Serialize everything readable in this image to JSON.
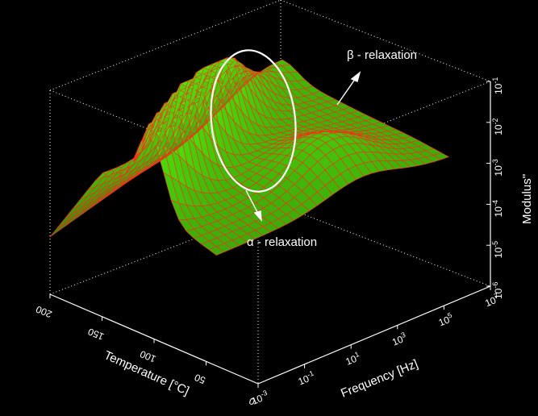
{
  "chart_data": {
    "type": "surface3d",
    "title": "",
    "xlabel": "Frequency [Hz]",
    "ylabel": "Temperature [°C]",
    "zlabel": "Modulus''",
    "x_scale": "log",
    "z_scale": "log",
    "xlim_log10": [
      -3,
      7
    ],
    "ylim": [
      0,
      200
    ],
    "zlim_log10": [
      -6,
      -1
    ],
    "x_ticks": [
      {
        "base": "10",
        "exp": "-3"
      },
      {
        "base": "10",
        "exp": "-1"
      },
      {
        "base": "10",
        "exp": "1"
      },
      {
        "base": "10",
        "exp": "3"
      },
      {
        "base": "10",
        "exp": "5"
      },
      {
        "base": "10",
        "exp": "7"
      }
    ],
    "y_ticks": [
      "0",
      "50",
      "100",
      "150",
      "200"
    ],
    "z_ticks": [
      {
        "base": "10",
        "exp": "-6"
      },
      {
        "base": "10",
        "exp": "-5"
      },
      {
        "base": "10",
        "exp": "-4"
      },
      {
        "base": "10",
        "exp": "-3"
      },
      {
        "base": "10",
        "exp": "-2"
      },
      {
        "base": "10",
        "exp": "-1"
      }
    ],
    "annotations": [
      {
        "text": "β - relaxation"
      },
      {
        "text": "α - relaxation"
      }
    ],
    "colors": {
      "surface_fill": "#3f9c0a",
      "mesh_line": "#ff2a1a",
      "highlight_ellipse": "#ffffff",
      "box": "#ffffff",
      "background": "#000000"
    },
    "grid": false,
    "legend": "none"
  }
}
